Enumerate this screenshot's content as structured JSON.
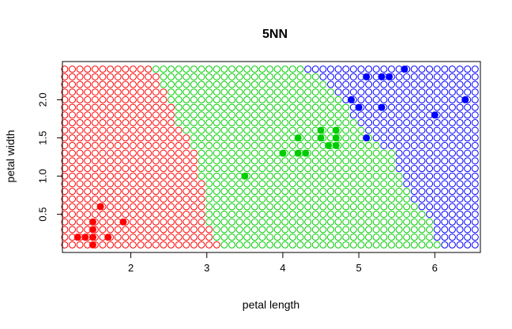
{
  "chart_data": {
    "type": "scatter",
    "title": "5NN",
    "xlabel": "petal length",
    "ylabel": "petal width",
    "xlim": [
      1.1,
      6.6
    ],
    "ylim": [
      0.0,
      2.5
    ],
    "x_ticks": [
      2,
      3,
      4,
      5,
      6
    ],
    "y_ticks": [
      0.5,
      1.0,
      1.5,
      2.0
    ],
    "x_tick_labels": [
      "2",
      "3",
      "4",
      "5",
      "6"
    ],
    "y_tick_labels": [
      "0.5",
      "1.0",
      "1.5",
      "2.0"
    ],
    "grid": false,
    "legend": "none",
    "colors": {
      "class1": "#ff0000",
      "class2": "#00cd00",
      "class3": "#0000ff"
    },
    "decision_grid": {
      "x_start": 1.13,
      "x_step": 0.1,
      "nx": 55,
      "y_start": 0.1,
      "y_step": 0.1,
      "ny": 24,
      "boundaries": [
        {
          "y": 0.1,
          "b12": 3.15,
          "b23": 6.05
        },
        {
          "y": 0.3,
          "b12": 3.05,
          "b23": 6.0
        },
        {
          "y": 0.5,
          "b12": 2.95,
          "b23": 5.9
        },
        {
          "y": 0.7,
          "b12": 2.95,
          "b23": 5.7
        },
        {
          "y": 0.9,
          "b12": 2.95,
          "b23": 5.6
        },
        {
          "y": 1.1,
          "b12": 2.85,
          "b23": 5.5
        },
        {
          "y": 1.3,
          "b12": 2.85,
          "b23": 5.45
        },
        {
          "y": 1.5,
          "b12": 2.75,
          "b23": 5.2
        },
        {
          "y": 1.7,
          "b12": 2.55,
          "b23": 4.95
        },
        {
          "y": 1.9,
          "b12": 2.55,
          "b23": 4.85
        },
        {
          "y": 2.1,
          "b12": 2.45,
          "b23": 4.65
        },
        {
          "y": 2.3,
          "b12": 2.35,
          "b23": 4.45
        },
        {
          "y": 2.5,
          "b12": 2.25,
          "b23": 4.2
        }
      ]
    },
    "series": [
      {
        "class": 1,
        "color": "#ff0000",
        "points": [
          [
            1.3,
            0.2
          ],
          [
            1.4,
            0.2
          ],
          [
            1.5,
            0.1
          ],
          [
            1.5,
            0.2
          ],
          [
            1.5,
            0.3
          ],
          [
            1.5,
            0.4
          ],
          [
            1.6,
            0.6
          ],
          [
            1.7,
            0.2
          ],
          [
            1.9,
            0.4
          ]
        ]
      },
      {
        "class": 2,
        "color": "#00cd00",
        "points": [
          [
            3.5,
            1.0
          ],
          [
            4.0,
            1.3
          ],
          [
            4.2,
            1.3
          ],
          [
            4.2,
            1.5
          ],
          [
            4.3,
            1.3
          ],
          [
            4.5,
            1.5
          ],
          [
            4.5,
            1.6
          ],
          [
            4.6,
            1.4
          ],
          [
            4.7,
            1.4
          ],
          [
            4.7,
            1.5
          ],
          [
            4.7,
            1.6
          ]
        ]
      },
      {
        "class": 3,
        "color": "#0000ff",
        "points": [
          [
            4.9,
            2.0
          ],
          [
            5.0,
            1.9
          ],
          [
            5.1,
            1.5
          ],
          [
            5.1,
            2.3
          ],
          [
            5.3,
            1.9
          ],
          [
            5.3,
            2.3
          ],
          [
            5.4,
            2.3
          ],
          [
            5.6,
            2.4
          ],
          [
            6.0,
            1.8
          ],
          [
            6.4,
            2.0
          ]
        ]
      }
    ]
  }
}
